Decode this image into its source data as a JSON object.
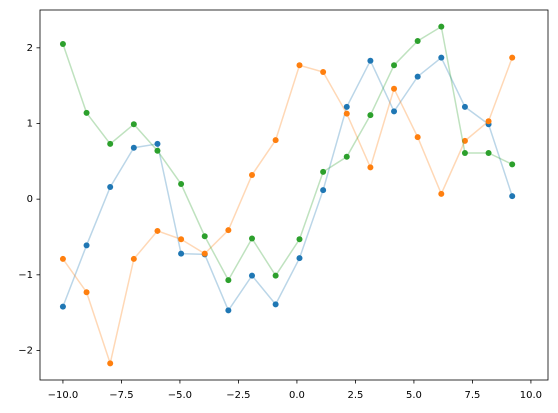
{
  "chart_data": {
    "type": "line",
    "x": [
      -10,
      -8.99,
      -7.98,
      -6.97,
      -5.96,
      -4.95,
      -3.94,
      -2.93,
      -1.92,
      -0.91,
      0.11,
      1.12,
      2.13,
      3.14,
      4.15,
      5.16,
      6.17,
      7.18,
      8.19,
      9.2
    ],
    "series": [
      {
        "color": "#1f77b4",
        "values": [
          -1.42,
          -0.61,
          0.16,
          0.68,
          0.73,
          -0.72,
          -0.73,
          -1.47,
          -1.01,
          -1.39,
          -0.78,
          0.12,
          1.22,
          1.83,
          1.16,
          1.62,
          1.87,
          1.22,
          0.99,
          0.04
        ]
      },
      {
        "color": "#ff7f0e",
        "values": [
          -0.79,
          -1.23,
          -2.17,
          -0.79,
          -0.42,
          -0.53,
          -0.72,
          -0.41,
          0.32,
          0.78,
          1.77,
          1.68,
          1.13,
          0.42,
          1.46,
          0.82,
          0.07,
          0.77,
          1.03,
          1.87
        ]
      },
      {
        "color": "#2ca02c",
        "values": [
          2.05,
          1.14,
          0.73,
          0.99,
          0.64,
          0.2,
          -0.49,
          -1.07,
          -0.52,
          -1.01,
          -0.53,
          0.36,
          0.56,
          1.11,
          1.77,
          2.09,
          2.28,
          0.61,
          0.61,
          0.46
        ]
      }
    ],
    "xlim": [
      -10.98,
      10.73
    ],
    "ylim": [
      -2.39,
      2.5
    ],
    "xticks": [
      {
        "value": -10,
        "label": "−10.0"
      },
      {
        "value": -7.5,
        "label": "−7.5"
      },
      {
        "value": -5,
        "label": "−5.0"
      },
      {
        "value": -2.5,
        "label": "−2.5"
      },
      {
        "value": 0,
        "label": "0.0"
      },
      {
        "value": 2.5,
        "label": "2.5"
      },
      {
        "value": 5,
        "label": "5.0"
      },
      {
        "value": 7.5,
        "label": "7.5"
      },
      {
        "value": 10,
        "label": "10.0"
      }
    ],
    "yticks": [
      {
        "value": -2,
        "label": "−2"
      },
      {
        "value": -1,
        "label": "−1"
      },
      0,
      1,
      2
    ],
    "line_alpha": 0.3,
    "grid": false
  }
}
